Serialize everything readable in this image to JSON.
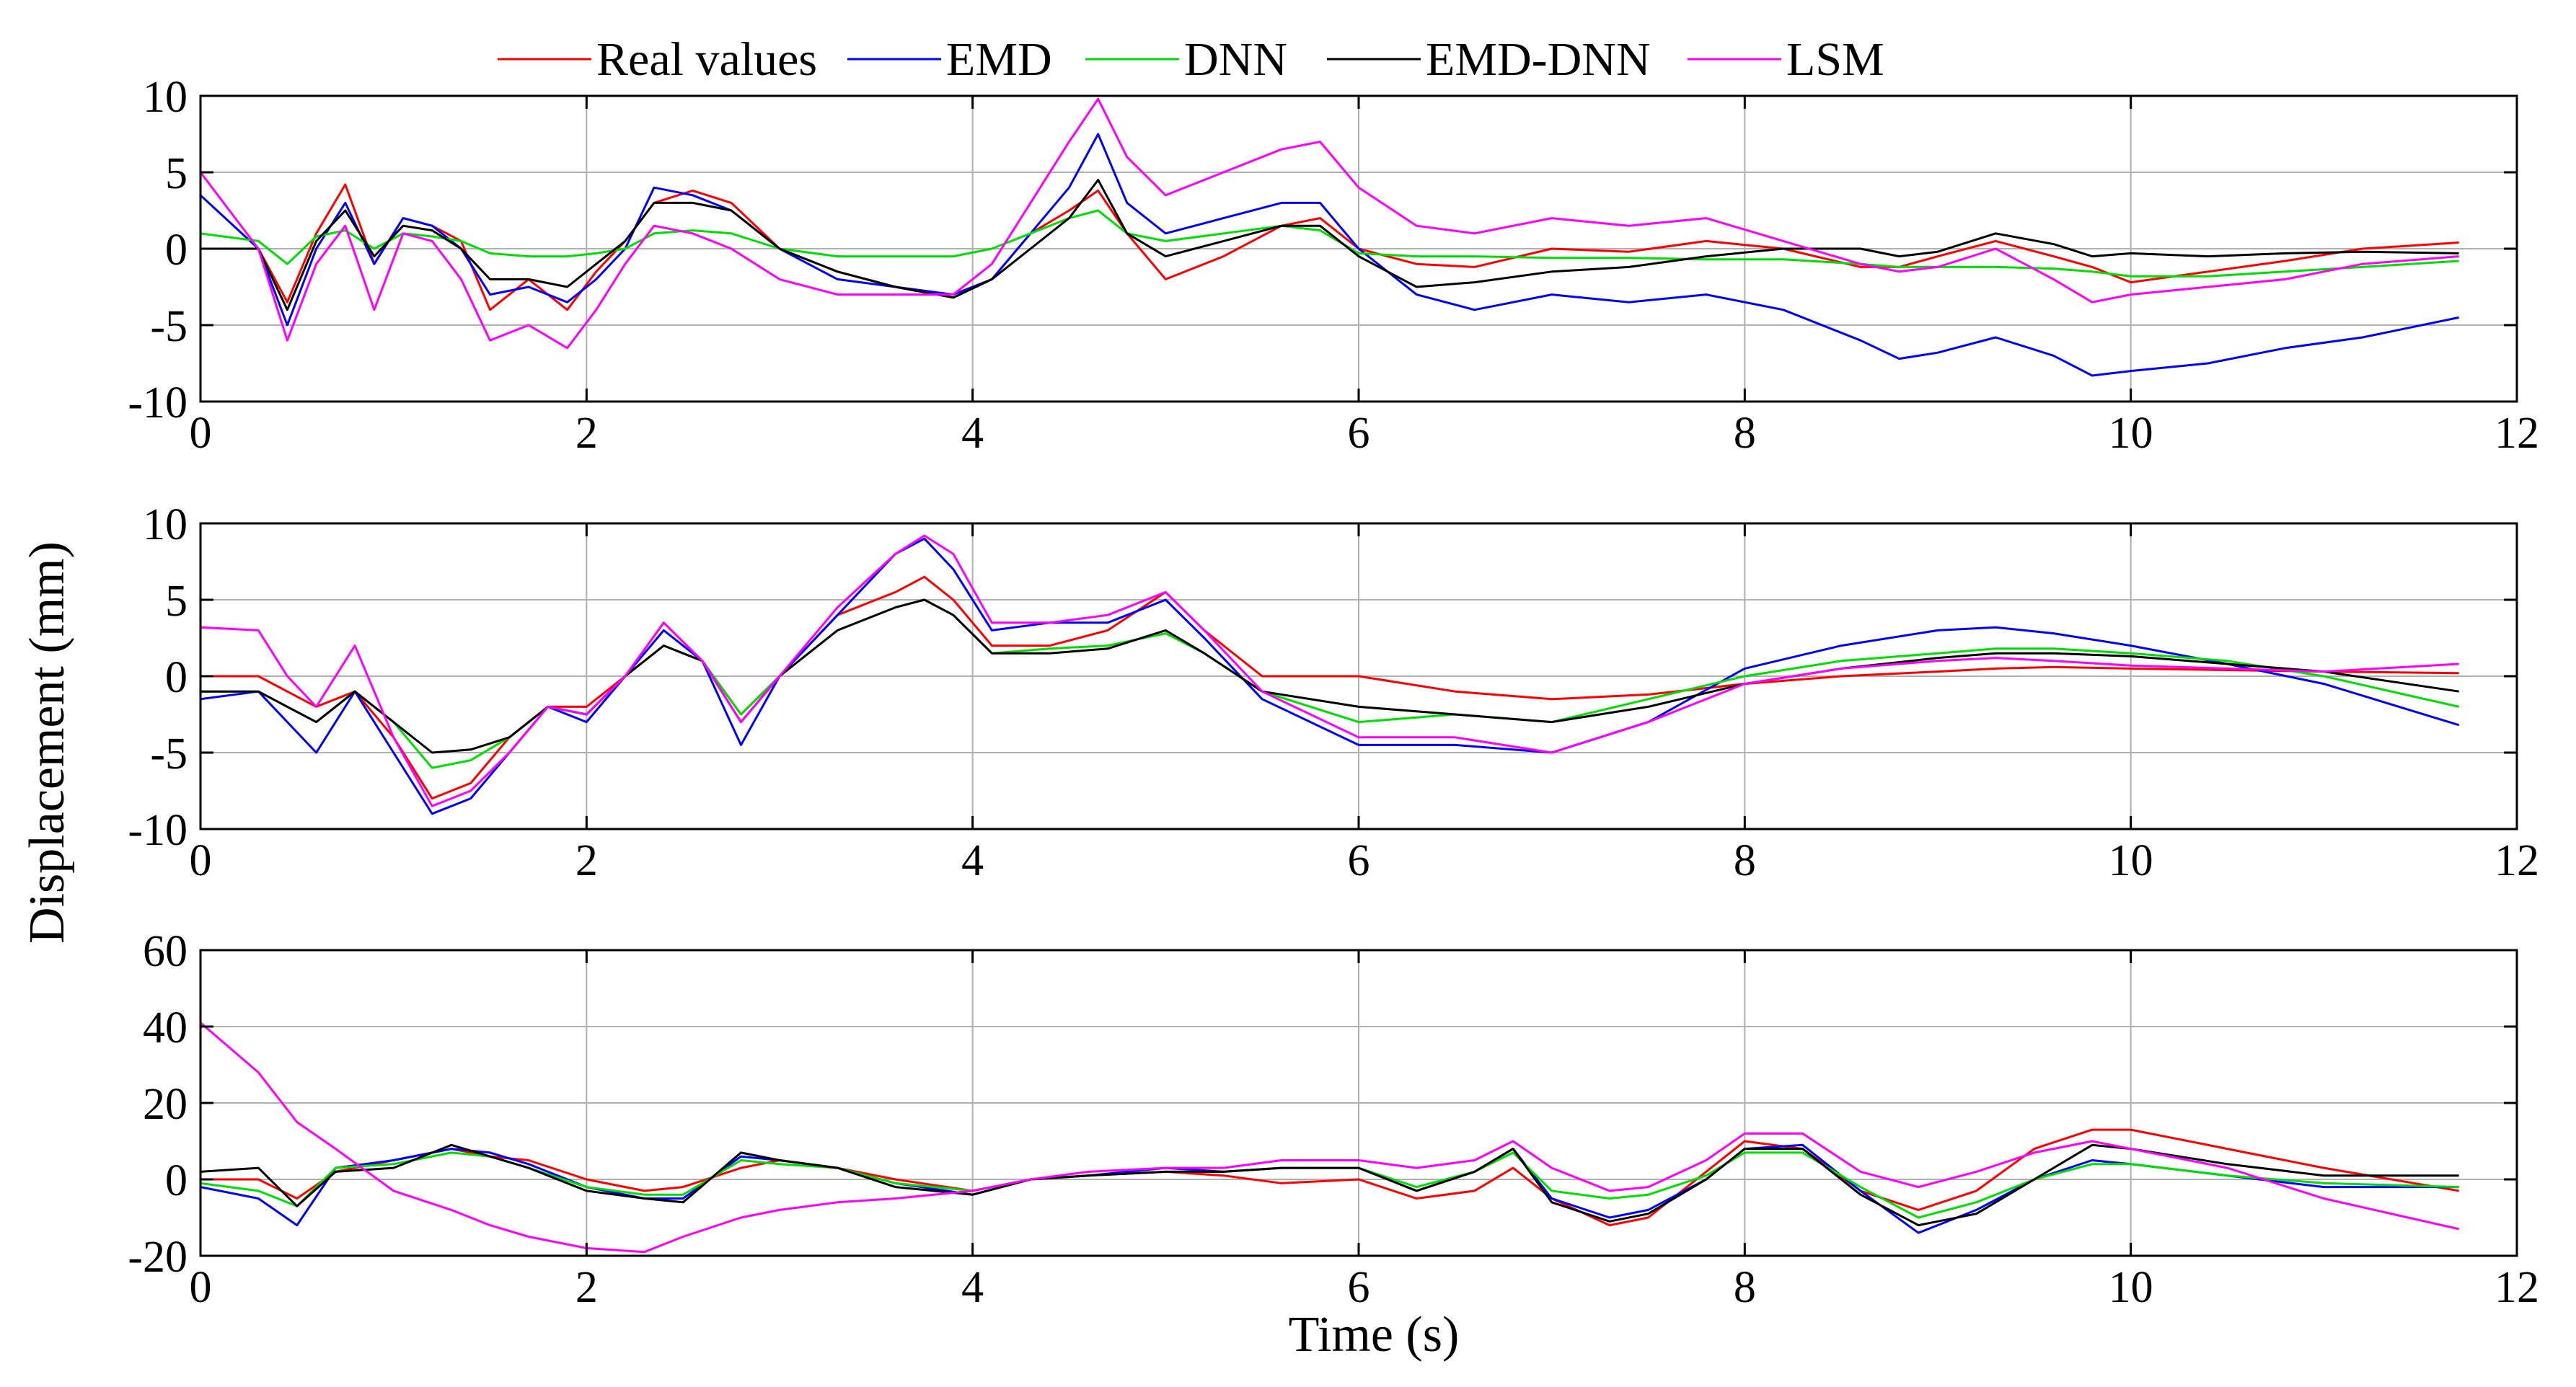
{
  "chart_data": [
    {
      "type": "line",
      "panel": "top",
      "xlabel": "",
      "ylabel": "",
      "xlim": [
        0,
        12
      ],
      "ylim": [
        -10,
        10
      ],
      "xticks": [
        "0",
        "2",
        "4",
        "6",
        "8",
        "10",
        "12"
      ],
      "yticks": [
        "-10",
        "-5",
        "0",
        "5",
        "10"
      ],
      "grid": true,
      "x": [
        0,
        0.3,
        0.45,
        0.6,
        0.75,
        0.9,
        1.05,
        1.2,
        1.35,
        1.5,
        1.7,
        1.9,
        2.05,
        2.2,
        2.35,
        2.55,
        2.75,
        3.0,
        3.3,
        3.6,
        3.9,
        4.1,
        4.3,
        4.5,
        4.65,
        4.8,
        5.0,
        5.3,
        5.6,
        5.8,
        6.0,
        6.3,
        6.6,
        7.0,
        7.4,
        7.8,
        8.2,
        8.6,
        8.8,
        9.0,
        9.3,
        9.6,
        9.8,
        10.0,
        10.4,
        10.8,
        11.2,
        11.7
      ],
      "series": [
        {
          "name": "Real values",
          "color": "#ff0000",
          "values": [
            0,
            0,
            -3.5,
            1,
            4.2,
            -1,
            2,
            1.5,
            0.5,
            -4,
            -2,
            -4,
            -1.5,
            0.5,
            3,
            3.8,
            3,
            0,
            -1.5,
            -2.5,
            -3.2,
            -2,
            1,
            2.5,
            3.8,
            1,
            -2,
            -0.5,
            1.5,
            2,
            0,
            -1,
            -1.2,
            0,
            -0.2,
            0.5,
            0,
            -1.2,
            -1.2,
            -0.5,
            0.5,
            -0.5,
            -1.2,
            -2.2,
            -1.5,
            -0.8,
            0,
            0.4
          ]
        },
        {
          "name": "EMD",
          "color": "#0000ff",
          "values": [
            3.5,
            0,
            -5,
            0,
            3,
            -1,
            2,
            1.5,
            0,
            -3,
            -2.5,
            -3.5,
            -2,
            0,
            4,
            3.5,
            2.5,
            0,
            -2,
            -2.5,
            -3,
            -2,
            1,
            4,
            7.5,
            3,
            1,
            2,
            3,
            3,
            0,
            -3,
            -4,
            -3,
            -3.5,
            -3,
            -4,
            -6,
            -7.2,
            -6.8,
            -5.8,
            -7,
            -8.3,
            -8,
            -7.5,
            -6.5,
            -5.8,
            -4.5
          ]
        },
        {
          "name": "DNN",
          "color": "#00dd00",
          "values": [
            1,
            0.5,
            -1,
            0.8,
            1.2,
            0,
            1,
            0.8,
            0.5,
            -0.3,
            -0.5,
            -0.5,
            -0.3,
            0,
            1,
            1.2,
            1,
            0,
            -0.5,
            -0.5,
            -0.5,
            0,
            1,
            2,
            2.5,
            1,
            0.5,
            1,
            1.5,
            1.2,
            -0.3,
            -0.5,
            -0.5,
            -0.6,
            -0.6,
            -0.7,
            -0.7,
            -1,
            -1.2,
            -1.2,
            -1.2,
            -1.3,
            -1.5,
            -1.8,
            -1.8,
            -1.5,
            -1.2,
            -0.8
          ]
        },
        {
          "name": "EMD-DNN",
          "color": "#000000",
          "values": [
            0,
            0,
            -4,
            0.5,
            2.5,
            -0.5,
            1.5,
            1.2,
            0,
            -2,
            -2,
            -2.5,
            -1,
            0.5,
            3,
            3,
            2.5,
            0,
            -1.5,
            -2.5,
            -3.2,
            -2,
            0,
            2,
            4.5,
            1,
            -0.5,
            0.5,
            1.5,
            1.5,
            -0.5,
            -2.5,
            -2.2,
            -1.5,
            -1.2,
            -0.5,
            0,
            0,
            -0.5,
            -0.2,
            1,
            0.3,
            -0.5,
            -0.3,
            -0.5,
            -0.3,
            -0.2,
            -0.3
          ]
        },
        {
          "name": "LSM",
          "color": "#ff00ff",
          "values": [
            5,
            0,
            -6,
            -1,
            1.5,
            -4,
            1,
            0.5,
            -2,
            -6,
            -5,
            -6.5,
            -4,
            -1,
            1.5,
            1,
            0,
            -2,
            -3,
            -3,
            -3,
            -1,
            3,
            7,
            9.8,
            6,
            3.5,
            5,
            6.5,
            7,
            4,
            1.5,
            1,
            2,
            1.5,
            2,
            0.5,
            -1,
            -1.5,
            -1.2,
            0,
            -2,
            -3.5,
            -3,
            -2.5,
            -2,
            -1,
            -0.5
          ]
        }
      ]
    },
    {
      "type": "line",
      "panel": "middle",
      "xlabel": "",
      "ylabel": "Displacement  (mm)",
      "xlim": [
        0,
        12
      ],
      "ylim": [
        -10,
        10
      ],
      "xticks": [
        "0",
        "2",
        "4",
        "6",
        "8",
        "10",
        "12"
      ],
      "yticks": [
        "-10",
        "-5",
        "0",
        "5",
        "10"
      ],
      "grid": true,
      "x": [
        0,
        0.3,
        0.45,
        0.6,
        0.8,
        1.0,
        1.2,
        1.4,
        1.6,
        1.8,
        2.0,
        2.2,
        2.4,
        2.6,
        2.8,
        3.0,
        3.3,
        3.6,
        3.75,
        3.9,
        4.1,
        4.4,
        4.7,
        5.0,
        5.2,
        5.5,
        6.0,
        6.5,
        7.0,
        7.5,
        8.0,
        8.5,
        9.0,
        9.3,
        9.6,
        10.0,
        10.5,
        11.0,
        11.7
      ],
      "series": [
        {
          "name": "Real values",
          "color": "#ff0000",
          "values": [
            0,
            0,
            -1,
            -2,
            -1,
            -4,
            -8,
            -7,
            -4,
            -2,
            -2,
            0,
            3.5,
            1,
            -2.5,
            0,
            4,
            5.5,
            6.5,
            5,
            2,
            2,
            3,
            5.5,
            3,
            0,
            0,
            -1,
            -1.5,
            -1.2,
            -0.5,
            0,
            0.3,
            0.5,
            0.6,
            0.5,
            0.4,
            0.3,
            0.2
          ]
        },
        {
          "name": "EMD",
          "color": "#0000ff",
          "values": [
            -1.5,
            -1,
            -3,
            -5,
            -1,
            -5,
            -9,
            -8,
            -5,
            -2,
            -3,
            0,
            3,
            1,
            -4.5,
            0,
            4,
            8,
            9,
            7,
            3,
            3.5,
            3.5,
            5,
            2.5,
            -1.5,
            -4.5,
            -4.5,
            -5,
            -3,
            0.5,
            2,
            3,
            3.2,
            2.8,
            2,
            0.8,
            -0.5,
            -3.2
          ]
        },
        {
          "name": "DNN",
          "color": "#00dd00",
          "values": [
            -1,
            -1,
            -2,
            -3,
            -1,
            -3,
            -6,
            -5.5,
            -4,
            -2,
            -2.5,
            0,
            2,
            1,
            -2.5,
            0,
            3,
            4.5,
            5,
            4,
            1.5,
            1.8,
            2,
            2.8,
            1.5,
            -1,
            -3,
            -2.5,
            -3,
            -1.5,
            0,
            1,
            1.5,
            1.8,
            1.8,
            1.5,
            1,
            0,
            -2
          ]
        },
        {
          "name": "EMD-DNN",
          "color": "#000000",
          "values": [
            -1,
            -1,
            -2,
            -3,
            -1,
            -3,
            -5,
            -4.8,
            -4,
            -2,
            -2.5,
            0,
            2,
            1,
            -3,
            0,
            3,
            4.5,
            5,
            4,
            1.5,
            1.5,
            1.8,
            3,
            1.5,
            -1,
            -2,
            -2.5,
            -3,
            -2,
            -0.5,
            0.5,
            1.2,
            1.5,
            1.5,
            1.3,
            0.8,
            0.3,
            -1
          ]
        },
        {
          "name": "LSM",
          "color": "#ff00ff",
          "values": [
            3.2,
            3,
            0,
            -2,
            2,
            -4,
            -8.5,
            -7.5,
            -5,
            -2,
            -2.5,
            0,
            3.5,
            1,
            -3,
            0,
            4.5,
            8,
            9.2,
            8,
            3.5,
            3.5,
            4,
            5.5,
            3,
            -1,
            -4,
            -4,
            -5,
            -3,
            -0.5,
            0.5,
            1,
            1.2,
            1,
            0.7,
            0.5,
            0.3,
            0.8
          ]
        }
      ]
    },
    {
      "type": "line",
      "panel": "bottom",
      "xlabel": "Time (s)",
      "ylabel": "",
      "xlim": [
        0,
        12
      ],
      "ylim": [
        -20,
        60
      ],
      "xticks": [
        "0",
        "2",
        "4",
        "6",
        "8",
        "10",
        "12"
      ],
      "yticks": [
        "-20",
        "0",
        "20",
        "40",
        "60"
      ],
      "grid": true,
      "x": [
        0,
        0.3,
        0.5,
        0.7,
        1.0,
        1.3,
        1.5,
        1.7,
        2.0,
        2.3,
        2.5,
        2.8,
        3.0,
        3.3,
        3.6,
        4.0,
        4.3,
        4.6,
        5.0,
        5.3,
        5.6,
        6.0,
        6.3,
        6.6,
        6.8,
        7.0,
        7.3,
        7.5,
        7.8,
        8.0,
        8.3,
        8.6,
        8.9,
        9.2,
        9.5,
        9.8,
        10.0,
        10.5,
        11.0,
        11.7
      ],
      "series": [
        {
          "name": "Real values",
          "color": "#ff0000",
          "values": [
            0,
            0,
            -5,
            2,
            5,
            8,
            6,
            5,
            0,
            -3,
            -2,
            3,
            5,
            3,
            0,
            -3,
            0,
            1,
            2,
            1,
            -1,
            0,
            -5,
            -3,
            3,
            -5,
            -12,
            -10,
            2,
            10,
            8,
            -3,
            -8,
            -3,
            8,
            13,
            13,
            8,
            3,
            -3
          ]
        },
        {
          "name": "EMD",
          "color": "#0000ff",
          "values": [
            -2,
            -5,
            -12,
            3,
            5,
            8,
            7,
            4,
            -2,
            -5,
            -5,
            6,
            5,
            3,
            -1,
            -4,
            0,
            1,
            3,
            2,
            3,
            3,
            -3,
            2,
            8,
            -5,
            -10,
            -8,
            0,
            8,
            9,
            -3,
            -14,
            -8,
            0,
            5,
            4,
            1,
            -2,
            -2
          ]
        },
        {
          "name": "DNN",
          "color": "#00dd00",
          "values": [
            -1,
            -3,
            -7,
            3,
            4,
            7,
            6,
            3,
            -2,
            -4,
            -4,
            5,
            4,
            3,
            -1,
            -3,
            0,
            1,
            2,
            2,
            3,
            3,
            -2,
            2,
            7,
            -3,
            -5,
            -4,
            1,
            7,
            7,
            -2,
            -10,
            -6,
            0,
            4,
            4,
            1,
            -1,
            -2
          ]
        },
        {
          "name": "EMD-DNN",
          "color": "#000000",
          "values": [
            2,
            3,
            -7,
            2,
            3,
            9,
            6,
            3,
            -3,
            -5,
            -6,
            7,
            5,
            3,
            -2,
            -4,
            0,
            1,
            2,
            2,
            3,
            3,
            -3,
            2,
            8,
            -6,
            -11,
            -9,
            0,
            8,
            8,
            -4,
            -12,
            -9,
            0,
            9,
            8,
            4,
            1,
            1
          ]
        },
        {
          "name": "LSM",
          "color": "#ff00ff",
          "values": [
            41,
            28,
            15,
            8,
            -3,
            -8,
            -12,
            -15,
            -18,
            -19,
            -15,
            -10,
            -8,
            -6,
            -5,
            -3,
            0,
            2,
            3,
            3,
            5,
            5,
            3,
            5,
            10,
            3,
            -3,
            -2,
            5,
            12,
            12,
            2,
            -2,
            2,
            7,
            10,
            8,
            3,
            -5,
            -13
          ]
        }
      ]
    }
  ],
  "legend": {
    "entries": [
      "Real values",
      "EMD",
      "DNN",
      "EMD-DNN",
      "LSM"
    ],
    "colors": [
      "#ff0000",
      "#0000ff",
      "#00dd00",
      "#000000",
      "#ff00ff"
    ],
    "placement": "top"
  }
}
